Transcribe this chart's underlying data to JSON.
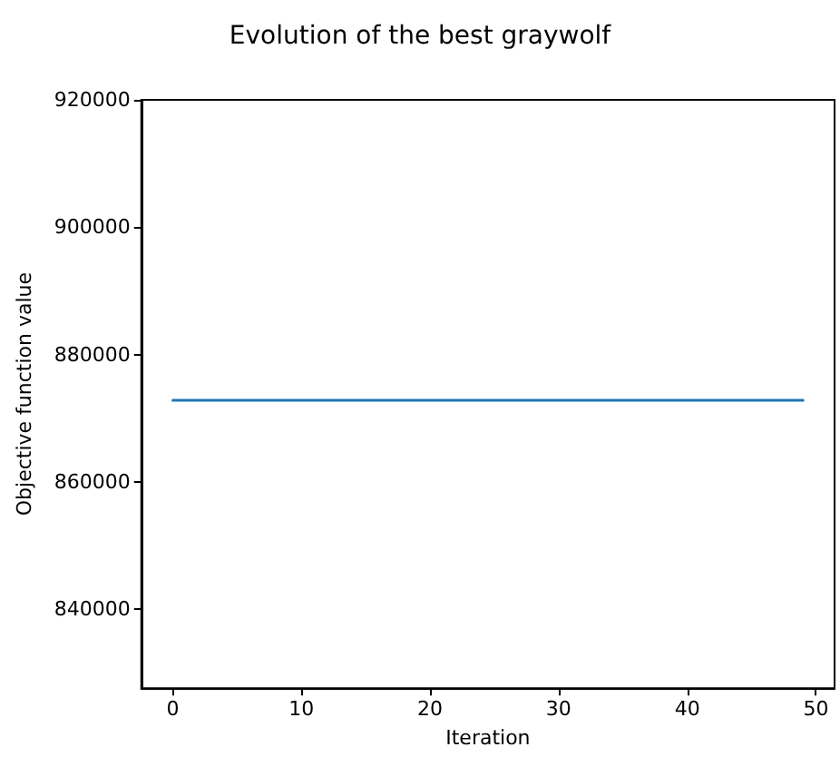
{
  "chart_data": {
    "type": "line",
    "title": "Evolution of the best graywolf",
    "xlabel": "Iteration",
    "ylabel": "Objective function value",
    "x": [
      0,
      49
    ],
    "series": [
      {
        "color": "#1f77b4",
        "values": [
          872800,
          872800
        ]
      }
    ],
    "xlim": [
      -2.45,
      51.45
    ],
    "xticks": [
      0,
      10,
      20,
      30,
      40,
      50
    ],
    "ylim": [
      827600,
      920000
    ],
    "yticks": [
      840000,
      860000,
      880000,
      900000,
      920000
    ],
    "marker": "none",
    "line_style": "solid"
  }
}
